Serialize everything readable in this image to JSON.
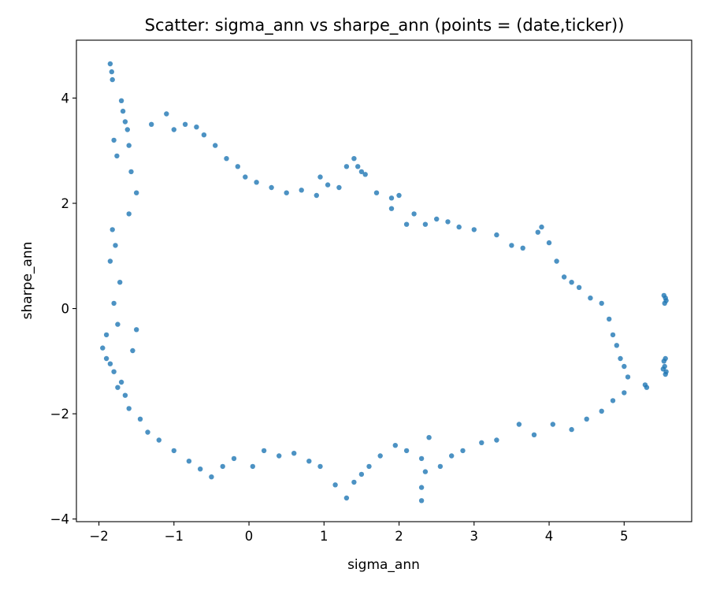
{
  "chart_data": {
    "type": "scatter",
    "title": "Scatter: sigma_ann vs sharpe_ann (points = (date,ticker))",
    "xlabel": "sigma_ann",
    "ylabel": "sharpe_ann",
    "xlim": [
      -2.3,
      5.9
    ],
    "ylim": [
      -4.05,
      5.1
    ],
    "x_ticks": [
      -2,
      -1,
      0,
      1,
      2,
      3,
      4,
      5
    ],
    "y_ticks": [
      -4,
      -2,
      0,
      2,
      4
    ],
    "x_tick_labels": [
      "−2",
      "−1",
      "0",
      "1",
      "2",
      "3",
      "4",
      "5"
    ],
    "y_tick_labels": [
      "−4",
      "−2",
      "0",
      "2",
      "4"
    ],
    "grid": false,
    "legend": "none",
    "point_color": "#1f77b4",
    "point_alpha": 0.8,
    "series": [
      {
        "points": [
          [
            -1.85,
            4.65
          ],
          [
            -1.83,
            4.5
          ],
          [
            -1.82,
            4.35
          ],
          [
            -1.8,
            3.2
          ],
          [
            -1.76,
            2.9
          ],
          [
            -1.7,
            3.95
          ],
          [
            -1.68,
            3.75
          ],
          [
            -1.65,
            3.55
          ],
          [
            -1.62,
            3.4
          ],
          [
            -1.6,
            3.1
          ],
          [
            -1.57,
            2.6
          ],
          [
            -1.5,
            2.2
          ],
          [
            -1.82,
            1.5
          ],
          [
            -1.78,
            1.2
          ],
          [
            -1.85,
            0.9
          ],
          [
            -1.72,
            0.5
          ],
          [
            -1.8,
            0.1
          ],
          [
            -1.75,
            -0.3
          ],
          [
            -1.9,
            -0.5
          ],
          [
            -1.95,
            -0.75
          ],
          [
            -1.9,
            -0.95
          ],
          [
            -1.85,
            -1.05
          ],
          [
            -1.8,
            -1.2
          ],
          [
            -1.7,
            -1.4
          ],
          [
            -1.75,
            -1.5
          ],
          [
            -1.65,
            -1.65
          ],
          [
            -1.6,
            -1.9
          ],
          [
            -1.55,
            -0.8
          ],
          [
            -1.5,
            -0.4
          ],
          [
            -1.6,
            1.8
          ],
          [
            -1.3,
            3.5
          ],
          [
            -1.1,
            3.7
          ],
          [
            -1.0,
            3.4
          ],
          [
            -0.85,
            3.5
          ],
          [
            -0.7,
            3.45
          ],
          [
            -0.6,
            3.3
          ],
          [
            -0.45,
            3.1
          ],
          [
            -0.3,
            2.85
          ],
          [
            -0.15,
            2.7
          ],
          [
            -0.05,
            2.5
          ],
          [
            0.1,
            2.4
          ],
          [
            0.3,
            2.3
          ],
          [
            0.5,
            2.2
          ],
          [
            0.7,
            2.25
          ],
          [
            0.9,
            2.15
          ],
          [
            0.95,
            2.5
          ],
          [
            1.05,
            2.35
          ],
          [
            1.2,
            2.3
          ],
          [
            1.3,
            2.7
          ],
          [
            1.4,
            2.85
          ],
          [
            1.45,
            2.7
          ],
          [
            1.5,
            2.6
          ],
          [
            1.55,
            2.55
          ],
          [
            1.7,
            2.2
          ],
          [
            1.9,
            2.1
          ],
          [
            2.0,
            2.15
          ],
          [
            1.9,
            1.9
          ],
          [
            2.1,
            1.6
          ],
          [
            2.2,
            1.8
          ],
          [
            2.35,
            1.6
          ],
          [
            2.5,
            1.7
          ],
          [
            2.65,
            1.65
          ],
          [
            2.8,
            1.55
          ],
          [
            3.0,
            1.5
          ],
          [
            3.3,
            1.4
          ],
          [
            3.5,
            1.2
          ],
          [
            3.65,
            1.15
          ],
          [
            3.85,
            1.45
          ],
          [
            3.9,
            1.55
          ],
          [
            4.0,
            1.25
          ],
          [
            4.1,
            0.9
          ],
          [
            4.2,
            0.6
          ],
          [
            4.3,
            0.5
          ],
          [
            4.4,
            0.4
          ],
          [
            4.55,
            0.2
          ],
          [
            4.7,
            0.1
          ],
          [
            4.8,
            -0.2
          ],
          [
            4.85,
            -0.5
          ],
          [
            4.9,
            -0.7
          ],
          [
            4.95,
            -0.95
          ],
          [
            5.0,
            -1.1
          ],
          [
            5.05,
            -1.3
          ],
          [
            5.0,
            -1.6
          ],
          [
            4.85,
            -1.75
          ],
          [
            4.7,
            -1.95
          ],
          [
            4.5,
            -2.1
          ],
          [
            4.3,
            -2.3
          ],
          [
            4.05,
            -2.2
          ],
          [
            3.8,
            -2.4
          ],
          [
            3.6,
            -2.2
          ],
          [
            3.3,
            -2.5
          ],
          [
            3.1,
            -2.55
          ],
          [
            2.85,
            -2.7
          ],
          [
            2.7,
            -2.8
          ],
          [
            2.55,
            -3.0
          ],
          [
            2.4,
            -2.45
          ],
          [
            2.3,
            -2.85
          ],
          [
            2.35,
            -3.1
          ],
          [
            2.3,
            -3.4
          ],
          [
            2.3,
            -3.65
          ],
          [
            2.1,
            -2.7
          ],
          [
            1.95,
            -2.6
          ],
          [
            1.75,
            -2.8
          ],
          [
            1.6,
            -3.0
          ],
          [
            1.5,
            -3.15
          ],
          [
            1.4,
            -3.3
          ],
          [
            1.3,
            -3.6
          ],
          [
            1.15,
            -3.35
          ],
          [
            0.95,
            -3.0
          ],
          [
            0.8,
            -2.9
          ],
          [
            0.6,
            -2.75
          ],
          [
            0.4,
            -2.8
          ],
          [
            0.2,
            -2.7
          ],
          [
            0.05,
            -3.0
          ],
          [
            -0.2,
            -2.85
          ],
          [
            -0.35,
            -3.0
          ],
          [
            -0.5,
            -3.2
          ],
          [
            -0.65,
            -3.05
          ],
          [
            -0.8,
            -2.9
          ],
          [
            -1.0,
            -2.7
          ],
          [
            -1.2,
            -2.5
          ],
          [
            -1.35,
            -2.35
          ],
          [
            -1.45,
            -2.1
          ],
          [
            5.3,
            -1.5
          ],
          [
            5.28,
            -1.45
          ],
          [
            5.53,
            0.25
          ],
          [
            5.55,
            0.2
          ],
          [
            5.56,
            0.15
          ],
          [
            5.54,
            0.1
          ],
          [
            5.55,
            -0.95
          ],
          [
            5.53,
            -1.0
          ],
          [
            5.54,
            -1.1
          ],
          [
            5.56,
            -1.2
          ],
          [
            5.55,
            -1.25
          ],
          [
            5.52,
            -1.15
          ]
        ]
      }
    ]
  }
}
